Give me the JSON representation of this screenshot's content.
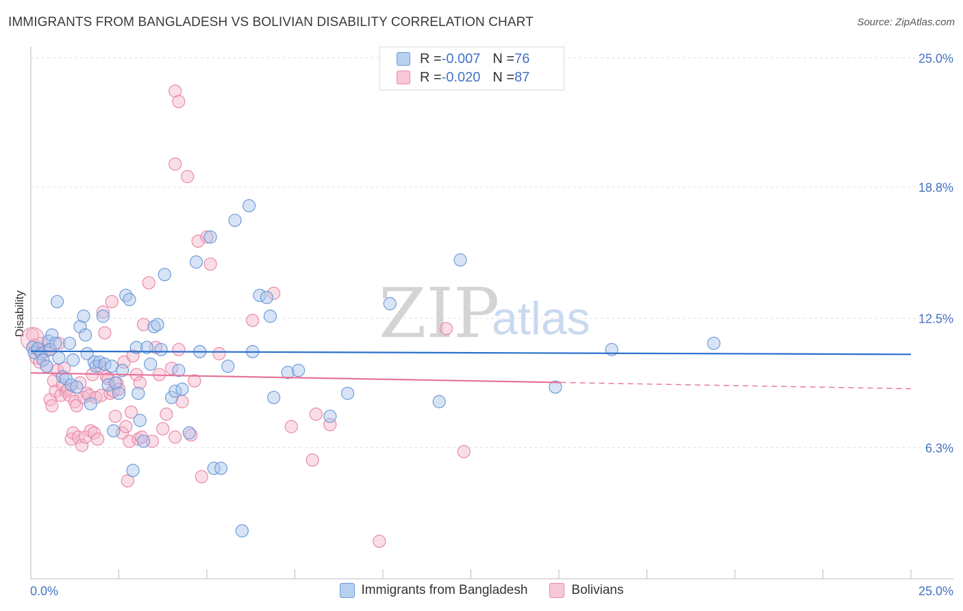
{
  "header": {
    "title": "IMMIGRANTS FROM BANGLADESH VS BOLIVIAN DISABILITY CORRELATION CHART",
    "source": "Source: ZipAtlas.com"
  },
  "legend": {
    "rows": [
      {
        "r_label": "R = ",
        "r_value": "-0.007",
        "n_label": "N = ",
        "n_value": "76"
      },
      {
        "r_label": "R = ",
        "r_value": "-0.020",
        "n_label": "N = ",
        "n_value": "87"
      }
    ]
  },
  "bottom_legend": {
    "items": [
      {
        "label": "Immigrants from Bangladesh"
      },
      {
        "label": "Bolivians"
      }
    ]
  },
  "watermark": {
    "zip": "ZIP",
    "atlas": "atlas"
  },
  "colors": {
    "blue_fill": "#a9c4ea",
    "blue_stroke": "#6c9bd8",
    "blue_line": "#2a6fcc",
    "pink_fill": "#f4b6c9",
    "pink_stroke": "#e889a8",
    "pink_line": "#e7739a",
    "grid": "#e0e0e0",
    "tick_text": "#4472c4"
  },
  "chart_data": {
    "type": "scatter",
    "title": "IMMIGRANTS FROM BANGLADESH VS BOLIVIAN DISABILITY CORRELATION CHART",
    "xlabel": "",
    "ylabel": "Disability",
    "xlim": [
      0,
      25
    ],
    "ylim": [
      0,
      25.8
    ],
    "x_tick_labels": [
      "0.0%",
      "25.0%"
    ],
    "y_ticks": [
      6.3,
      12.5,
      18.8,
      25.0
    ],
    "y_tick_labels": [
      "6.3%",
      "12.5%",
      "18.8%",
      "25.0%"
    ],
    "grid": "horizontal dashed",
    "legend_position": "top-center",
    "series": [
      {
        "name": "Immigrants from Bangladesh",
        "r": -0.007,
        "n": 76,
        "trend": {
          "x": [
            0,
            25
          ],
          "y": [
            10.92,
            10.77
          ]
        },
        "points": [
          [
            0.05,
            11.1
          ],
          [
            0.1,
            10.85
          ],
          [
            0.2,
            11.05
          ],
          [
            0.3,
            10.8
          ],
          [
            0.35,
            10.5
          ],
          [
            0.45,
            10.2
          ],
          [
            0.5,
            11.4
          ],
          [
            0.55,
            11.0
          ],
          [
            0.6,
            11.7
          ],
          [
            0.7,
            11.3
          ],
          [
            0.75,
            13.3
          ],
          [
            0.8,
            10.6
          ],
          [
            0.9,
            9.7
          ],
          [
            1.0,
            9.6
          ],
          [
            1.1,
            11.3
          ],
          [
            1.15,
            9.3
          ],
          [
            1.2,
            10.5
          ],
          [
            1.3,
            9.2
          ],
          [
            1.4,
            12.1
          ],
          [
            1.5,
            12.6
          ],
          [
            1.55,
            11.7
          ],
          [
            1.6,
            10.8
          ],
          [
            1.7,
            8.4
          ],
          [
            1.8,
            10.4
          ],
          [
            1.85,
            10.2
          ],
          [
            1.95,
            10.4
          ],
          [
            2.05,
            12.6
          ],
          [
            2.1,
            10.3
          ],
          [
            2.2,
            9.3
          ],
          [
            2.3,
            10.2
          ],
          [
            2.35,
            7.1
          ],
          [
            2.4,
            9.4
          ],
          [
            2.5,
            8.9
          ],
          [
            2.6,
            10.0
          ],
          [
            2.7,
            13.6
          ],
          [
            2.8,
            13.4
          ],
          [
            2.9,
            5.2
          ],
          [
            3.0,
            11.1
          ],
          [
            3.05,
            8.9
          ],
          [
            3.1,
            7.6
          ],
          [
            3.2,
            6.6
          ],
          [
            3.3,
            11.1
          ],
          [
            3.4,
            10.3
          ],
          [
            3.5,
            12.1
          ],
          [
            3.6,
            12.2
          ],
          [
            3.7,
            11.0
          ],
          [
            3.8,
            14.6
          ],
          [
            4.0,
            8.7
          ],
          [
            4.1,
            9.0
          ],
          [
            4.2,
            10.0
          ],
          [
            4.3,
            9.1
          ],
          [
            4.5,
            7.0
          ],
          [
            4.7,
            15.2
          ],
          [
            4.8,
            10.9
          ],
          [
            5.1,
            16.4
          ],
          [
            5.2,
            5.3
          ],
          [
            5.4,
            5.3
          ],
          [
            5.6,
            10.2
          ],
          [
            5.8,
            17.2
          ],
          [
            6.0,
            2.3
          ],
          [
            6.2,
            17.9
          ],
          [
            6.3,
            10.9
          ],
          [
            6.5,
            13.6
          ],
          [
            6.7,
            13.5
          ],
          [
            6.8,
            12.6
          ],
          [
            6.9,
            8.7
          ],
          [
            7.3,
            9.9
          ],
          [
            7.6,
            10.0
          ],
          [
            8.5,
            7.8
          ],
          [
            9.0,
            8.9
          ],
          [
            10.2,
            13.2
          ],
          [
            11.6,
            8.5
          ],
          [
            12.2,
            15.3
          ],
          [
            14.9,
            9.2
          ],
          [
            16.5,
            11.0
          ],
          [
            19.4,
            11.3
          ]
        ]
      },
      {
        "name": "Bolivians",
        "r": -0.02,
        "n": 87,
        "trend_solid": {
          "x": [
            0,
            15.05
          ],
          "y": [
            9.88,
            9.42
          ]
        },
        "trend_dashed": {
          "x": [
            15.05,
            25
          ],
          "y": [
            9.42,
            9.12
          ]
        },
        "points": [
          [
            0.05,
            11.7
          ],
          [
            0.1,
            11.2
          ],
          [
            0.15,
            10.6
          ],
          [
            0.2,
            11.0
          ],
          [
            0.25,
            10.4
          ],
          [
            0.3,
            11.3
          ],
          [
            0.4,
            10.9
          ],
          [
            0.45,
            10.2
          ],
          [
            0.5,
            11.0
          ],
          [
            0.55,
            8.6
          ],
          [
            0.6,
            8.3
          ],
          [
            0.65,
            9.5
          ],
          [
            0.7,
            9.0
          ],
          [
            0.75,
            10.0
          ],
          [
            0.8,
            11.3
          ],
          [
            0.85,
            8.8
          ],
          [
            0.9,
            9.3
          ],
          [
            0.95,
            10.1
          ],
          [
            1.0,
            9.0
          ],
          [
            1.05,
            9.1
          ],
          [
            1.1,
            8.8
          ],
          [
            1.15,
            6.7
          ],
          [
            1.2,
            7.0
          ],
          [
            1.25,
            8.5
          ],
          [
            1.3,
            8.3
          ],
          [
            1.35,
            6.8
          ],
          [
            1.4,
            9.4
          ],
          [
            1.45,
            6.4
          ],
          [
            1.5,
            8.7
          ],
          [
            1.55,
            6.8
          ],
          [
            1.6,
            8.9
          ],
          [
            1.65,
            8.8
          ],
          [
            1.7,
            7.1
          ],
          [
            1.75,
            9.8
          ],
          [
            1.8,
            7.0
          ],
          [
            1.85,
            8.7
          ],
          [
            1.9,
            6.7
          ],
          [
            1.95,
            10.2
          ],
          [
            2.0,
            8.8
          ],
          [
            2.05,
            12.8
          ],
          [
            2.1,
            11.8
          ],
          [
            2.15,
            9.7
          ],
          [
            2.2,
            9.6
          ],
          [
            2.25,
            8.9
          ],
          [
            2.3,
            13.3
          ],
          [
            2.35,
            9.0
          ],
          [
            2.4,
            7.8
          ],
          [
            2.45,
            9.4
          ],
          [
            2.5,
            9.1
          ],
          [
            2.6,
            7.0
          ],
          [
            2.65,
            10.4
          ],
          [
            2.7,
            7.3
          ],
          [
            2.75,
            4.7
          ],
          [
            2.8,
            6.6
          ],
          [
            2.85,
            8.0
          ],
          [
            2.9,
            10.7
          ],
          [
            3.0,
            9.8
          ],
          [
            3.05,
            6.7
          ],
          [
            3.1,
            9.4
          ],
          [
            3.15,
            6.8
          ],
          [
            3.2,
            12.2
          ],
          [
            3.35,
            14.2
          ],
          [
            3.45,
            6.6
          ],
          [
            3.55,
            11.1
          ],
          [
            3.65,
            9.8
          ],
          [
            3.75,
            7.2
          ],
          [
            3.85,
            7.9
          ],
          [
            4.0,
            10.1
          ],
          [
            4.1,
            6.8
          ],
          [
            4.2,
            11.0
          ],
          [
            4.3,
            8.5
          ],
          [
            4.45,
            19.3
          ],
          [
            4.55,
            6.9
          ],
          [
            4.65,
            9.5
          ],
          [
            4.75,
            16.2
          ],
          [
            4.85,
            4.9
          ],
          [
            5.0,
            16.4
          ],
          [
            5.1,
            15.1
          ],
          [
            5.35,
            10.8
          ],
          [
            6.3,
            12.4
          ],
          [
            6.9,
            13.7
          ],
          [
            7.4,
            7.3
          ],
          [
            8.0,
            5.7
          ],
          [
            8.1,
            7.9
          ],
          [
            8.5,
            7.4
          ],
          [
            9.9,
            1.8
          ],
          [
            12.3,
            6.1
          ]
        ],
        "extra_points": [
          [
            4.1,
            23.4
          ],
          [
            4.2,
            22.9
          ],
          [
            4.1,
            19.9
          ],
          [
            11.8,
            12.0
          ]
        ]
      }
    ]
  }
}
